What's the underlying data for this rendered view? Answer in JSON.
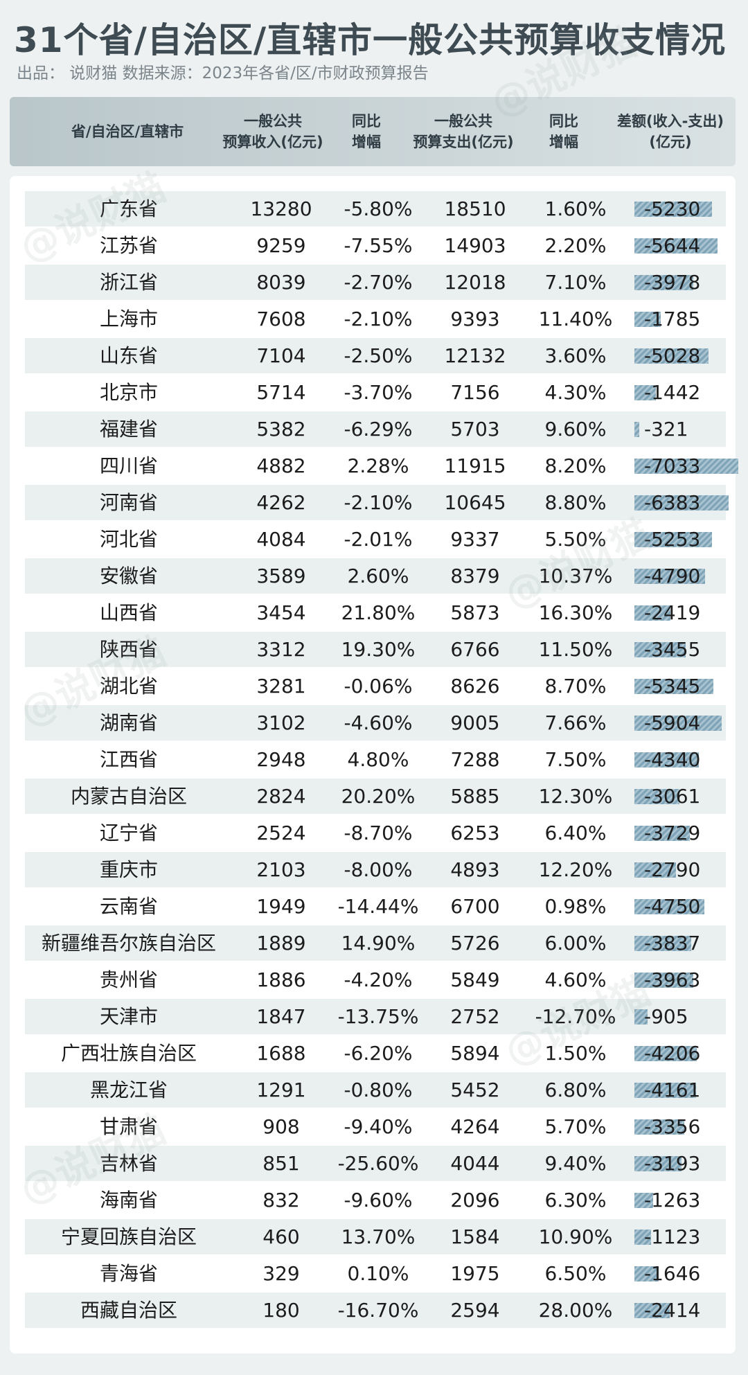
{
  "title": "31个省/自治区/直辖市一般公共预算收支情况",
  "subtitle": "出品： 说财猫  数据来源：2023年各省/区/市财政预算报告",
  "watermark": "@说财猫",
  "colors": {
    "bar": "#7fa4b8",
    "row_alt": "#e9f0ef",
    "header": "#b9c6ca"
  },
  "chart_data": {
    "type": "table",
    "columns": [
      "省/自治区/直辖市",
      "一般公共\n预算收入(亿元)",
      "同比\n增幅",
      "一般公共\n预算支出(亿元)",
      "同比\n增幅",
      "差额(收入-支出)\n(亿元)"
    ],
    "rows": [
      {
        "name": "广东省",
        "income": 13280,
        "income_growth": "-5.80%",
        "expense": 18510,
        "expense_growth": "1.60%",
        "diff": -5230
      },
      {
        "name": "江苏省",
        "income": 9259,
        "income_growth": "-7.55%",
        "expense": 14903,
        "expense_growth": "2.20%",
        "diff": -5644
      },
      {
        "name": "浙江省",
        "income": 8039,
        "income_growth": "-2.70%",
        "expense": 12018,
        "expense_growth": "7.10%",
        "diff": -3978
      },
      {
        "name": "上海市",
        "income": 7608,
        "income_growth": "-2.10%",
        "expense": 9393,
        "expense_growth": "11.40%",
        "diff": -1785
      },
      {
        "name": "山东省",
        "income": 7104,
        "income_growth": "-2.50%",
        "expense": 12132,
        "expense_growth": "3.60%",
        "diff": -5028
      },
      {
        "name": "北京市",
        "income": 5714,
        "income_growth": "-3.70%",
        "expense": 7156,
        "expense_growth": "4.30%",
        "diff": -1442
      },
      {
        "name": "福建省",
        "income": 5382,
        "income_growth": "-6.29%",
        "expense": 5703,
        "expense_growth": "9.60%",
        "diff": -321
      },
      {
        "name": "四川省",
        "income": 4882,
        "income_growth": "2.28%",
        "expense": 11915,
        "expense_growth": "8.20%",
        "diff": -7033
      },
      {
        "name": "河南省",
        "income": 4262,
        "income_growth": "-2.10%",
        "expense": 10645,
        "expense_growth": "8.80%",
        "diff": -6383
      },
      {
        "name": "河北省",
        "income": 4084,
        "income_growth": "-2.01%",
        "expense": 9337,
        "expense_growth": "5.50%",
        "diff": -5253
      },
      {
        "name": "安徽省",
        "income": 3589,
        "income_growth": "2.60%",
        "expense": 8379,
        "expense_growth": "10.37%",
        "diff": -4790
      },
      {
        "name": "山西省",
        "income": 3454,
        "income_growth": "21.80%",
        "expense": 5873,
        "expense_growth": "16.30%",
        "diff": -2419
      },
      {
        "name": "陕西省",
        "income": 3312,
        "income_growth": "19.30%",
        "expense": 6766,
        "expense_growth": "11.50%",
        "diff": -3455
      },
      {
        "name": "湖北省",
        "income": 3281,
        "income_growth": "-0.06%",
        "expense": 8626,
        "expense_growth": "8.70%",
        "diff": -5345
      },
      {
        "name": "湖南省",
        "income": 3102,
        "income_growth": "-4.60%",
        "expense": 9005,
        "expense_growth": "7.66%",
        "diff": -5904
      },
      {
        "name": "江西省",
        "income": 2948,
        "income_growth": "4.80%",
        "expense": 7288,
        "expense_growth": "7.50%",
        "diff": -4340
      },
      {
        "name": "内蒙古自治区",
        "income": 2824,
        "income_growth": "20.20%",
        "expense": 5885,
        "expense_growth": "12.30%",
        "diff": -3061
      },
      {
        "name": "辽宁省",
        "income": 2524,
        "income_growth": "-8.70%",
        "expense": 6253,
        "expense_growth": "6.40%",
        "diff": -3729
      },
      {
        "name": "重庆市",
        "income": 2103,
        "income_growth": "-8.00%",
        "expense": 4893,
        "expense_growth": "12.20%",
        "diff": -2790
      },
      {
        "name": "云南省",
        "income": 1949,
        "income_growth": "-14.44%",
        "expense": 6700,
        "expense_growth": "0.98%",
        "diff": -4750
      },
      {
        "name": "新疆维吾尔族自治区",
        "income": 1889,
        "income_growth": "14.90%",
        "expense": 5726,
        "expense_growth": "6.00%",
        "diff": -3837
      },
      {
        "name": "贵州省",
        "income": 1886,
        "income_growth": "-4.20%",
        "expense": 5849,
        "expense_growth": "4.60%",
        "diff": -3963
      },
      {
        "name": "天津市",
        "income": 1847,
        "income_growth": "-13.75%",
        "expense": 2752,
        "expense_growth": "-12.70%",
        "diff": -905
      },
      {
        "name": "广西壮族自治区",
        "income": 1688,
        "income_growth": "-6.20%",
        "expense": 5894,
        "expense_growth": "1.50%",
        "diff": -4206
      },
      {
        "name": "黑龙江省",
        "income": 1291,
        "income_growth": "-0.80%",
        "expense": 5452,
        "expense_growth": "6.80%",
        "diff": -4161
      },
      {
        "name": "甘肃省",
        "income": 908,
        "income_growth": "-9.40%",
        "expense": 4264,
        "expense_growth": "5.70%",
        "diff": -3356
      },
      {
        "name": "吉林省",
        "income": 851,
        "income_growth": "-25.60%",
        "expense": 4044,
        "expense_growth": "9.40%",
        "diff": -3193
      },
      {
        "name": "海南省",
        "income": 832,
        "income_growth": "-9.60%",
        "expense": 2096,
        "expense_growth": "6.30%",
        "diff": -1263
      },
      {
        "name": "宁夏回族自治区",
        "income": 460,
        "income_growth": "13.70%",
        "expense": 1584,
        "expense_growth": "10.90%",
        "diff": -1123
      },
      {
        "name": "青海省",
        "income": 329,
        "income_growth": "0.10%",
        "expense": 1975,
        "expense_growth": "6.50%",
        "diff": -1646
      },
      {
        "name": "西藏自治区",
        "income": 180,
        "income_growth": "-16.70%",
        "expense": 2594,
        "expense_growth": "28.00%",
        "diff": -2414
      }
    ]
  }
}
